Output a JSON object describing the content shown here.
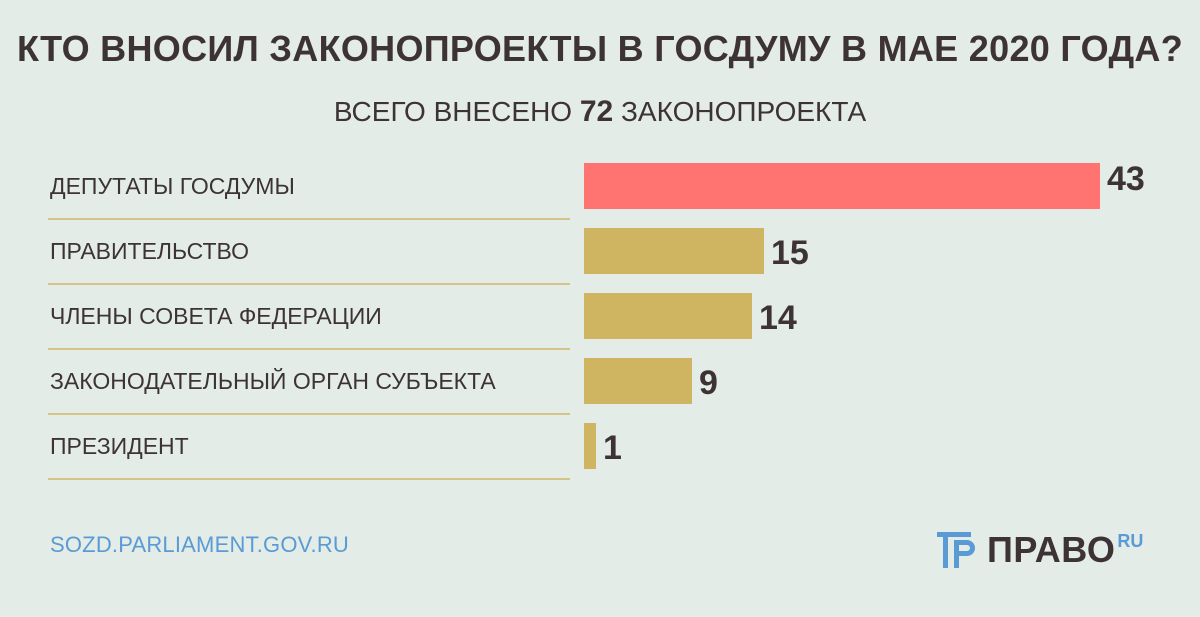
{
  "title": "КТО ВНОСИЛ ЗАКОНОПРОЕКТЫ В ГОСДУМУ В МАЕ 2020 ГОДА?",
  "subtitle": {
    "prefix": "ВСЕГО ВНЕСЕНО",
    "total": "72",
    "suffix": "ЗАКОНОПРОЕКТА"
  },
  "chart_data": {
    "type": "bar",
    "orientation": "horizontal",
    "categories": [
      "ДЕПУТАТЫ ГОСДУМЫ",
      "ПРАВИТЕЛЬСТВО",
      "ЧЛЕНЫ СОВЕТА ФЕДЕРАЦИИ",
      "ЗАКОНОДАТЕЛЬНЫЙ ОРГАН СУБЪЕКТА",
      "ПРЕЗИДЕНТ"
    ],
    "values": [
      43,
      15,
      14,
      9,
      1
    ],
    "data_labels": [
      "43",
      "15",
      "14",
      "9",
      "1"
    ],
    "colors": [
      "#ff7470",
      "#cfb561",
      "#cfb561",
      "#cfb561",
      "#cfb561"
    ],
    "xlim": [
      0,
      43
    ],
    "grid": false,
    "legend": "none"
  },
  "footer": {
    "source": "SOZD.PARLIAMENT.GOV.RU",
    "logo_text": "ПРАВО",
    "logo_suffix": "RU",
    "logo_color": "#5b9bd5"
  }
}
